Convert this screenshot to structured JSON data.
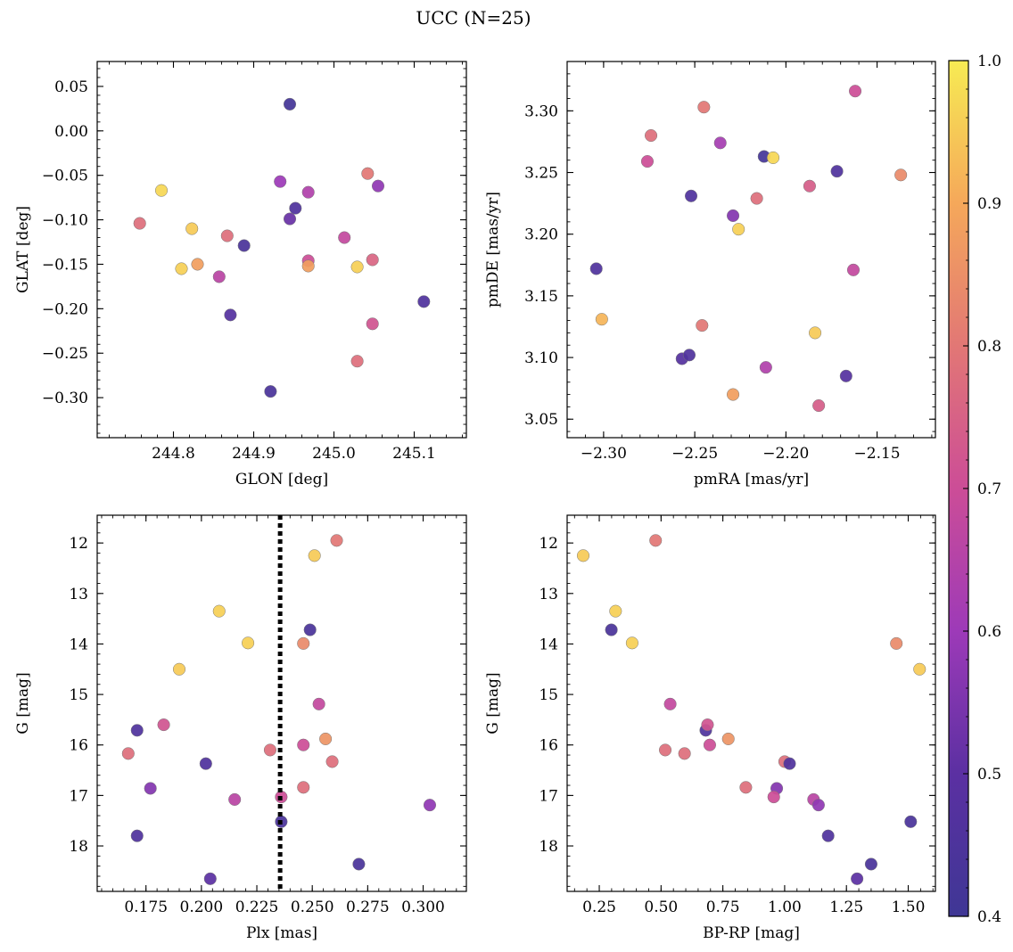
{
  "figure": {
    "title": "UCC (N=25)",
    "colorbar": {
      "min": 0.4,
      "max": 1.0,
      "ticks": [
        0.4,
        0.5,
        0.6,
        0.7,
        0.8,
        0.9,
        1.0
      ],
      "tick_labels": [
        "0.4",
        "0.5",
        "0.6",
        "0.7",
        "0.8",
        "0.9",
        "1.0"
      ],
      "colormap": [
        "#3f3795",
        "#5b30a2",
        "#9d3ab8",
        "#cc4d97",
        "#e27775",
        "#f5a85a",
        "#f7eb53"
      ]
    }
  },
  "chart_data": [
    {
      "type": "scatter",
      "xlabel": "GLON [deg]",
      "ylabel": "GLAT [deg]",
      "xlim": [
        244.705,
        245.165
      ],
      "ylim": [
        -0.345,
        0.078
      ],
      "xticks": [
        244.8,
        244.9,
        245.0,
        245.1
      ],
      "xtick_labels": [
        "244.8",
        "244.9",
        "245.0",
        "245.1"
      ],
      "yticks": [
        0.05,
        0.0,
        -0.05,
        -0.1,
        -0.15,
        -0.2,
        -0.25,
        -0.3
      ],
      "ytick_labels": [
        "0.05",
        "0.00",
        "−0.05",
        "−0.10",
        "−0.15",
        "−0.20",
        "−0.25",
        "−0.30"
      ],
      "points": [
        {
          "x": 244.945,
          "y": 0.03,
          "c": 0.42
        },
        {
          "x": 244.785,
          "y": -0.067,
          "c": 0.97
        },
        {
          "x": 244.758,
          "y": -0.104,
          "c": 0.78
        },
        {
          "x": 244.823,
          "y": -0.11,
          "c": 0.95
        },
        {
          "x": 244.81,
          "y": -0.155,
          "c": 0.96
        },
        {
          "x": 244.83,
          "y": -0.15,
          "c": 0.88
        },
        {
          "x": 244.867,
          "y": -0.118,
          "c": 0.78
        },
        {
          "x": 244.888,
          "y": -0.129,
          "c": 0.44
        },
        {
          "x": 244.857,
          "y": -0.164,
          "c": 0.66
        },
        {
          "x": 244.871,
          "y": -0.207,
          "c": 0.48
        },
        {
          "x": 244.921,
          "y": -0.293,
          "c": 0.44
        },
        {
          "x": 244.933,
          "y": -0.057,
          "c": 0.6
        },
        {
          "x": 244.952,
          "y": -0.087,
          "c": 0.46
        },
        {
          "x": 244.945,
          "y": -0.099,
          "c": 0.52
        },
        {
          "x": 244.968,
          "y": -0.069,
          "c": 0.64
        },
        {
          "x": 244.968,
          "y": -0.146,
          "c": 0.7
        },
        {
          "x": 244.968,
          "y": -0.152,
          "c": 0.88
        },
        {
          "x": 245.013,
          "y": -0.12,
          "c": 0.68
        },
        {
          "x": 245.029,
          "y": -0.153,
          "c": 0.96
        },
        {
          "x": 245.042,
          "y": -0.048,
          "c": 0.8
        },
        {
          "x": 245.055,
          "y": -0.062,
          "c": 0.58
        },
        {
          "x": 245.048,
          "y": -0.145,
          "c": 0.76
        },
        {
          "x": 245.048,
          "y": -0.217,
          "c": 0.72
        },
        {
          "x": 245.029,
          "y": -0.259,
          "c": 0.78
        },
        {
          "x": 245.112,
          "y": -0.192,
          "c": 0.46
        }
      ]
    },
    {
      "type": "scatter",
      "xlabel": "pmRA [mas/yr]",
      "ylabel": "pmDE [mas/yr]",
      "xlim": [
        -2.32,
        -2.118
      ],
      "ylim": [
        3.035,
        3.34
      ],
      "xticks": [
        -2.3,
        -2.25,
        -2.2,
        -2.15
      ],
      "xtick_labels": [
        "−2.30",
        "−2.25",
        "−2.20",
        "−2.15"
      ],
      "yticks": [
        3.3,
        3.25,
        3.2,
        3.15,
        3.1,
        3.05
      ],
      "ytick_labels": [
        "3.30",
        "3.25",
        "3.20",
        "3.15",
        "3.10",
        "3.05"
      ],
      "points": [
        {
          "x": -2.162,
          "y": 3.316,
          "c": 0.7
        },
        {
          "x": -2.245,
          "y": 3.303,
          "c": 0.8
        },
        {
          "x": -2.274,
          "y": 3.28,
          "c": 0.78
        },
        {
          "x": -2.236,
          "y": 3.274,
          "c": 0.62
        },
        {
          "x": -2.276,
          "y": 3.259,
          "c": 0.7
        },
        {
          "x": -2.212,
          "y": 3.263,
          "c": 0.42
        },
        {
          "x": -2.207,
          "y": 3.262,
          "c": 0.97
        },
        {
          "x": -2.172,
          "y": 3.251,
          "c": 0.46
        },
        {
          "x": -2.137,
          "y": 3.248,
          "c": 0.84
        },
        {
          "x": -2.187,
          "y": 3.239,
          "c": 0.74
        },
        {
          "x": -2.252,
          "y": 3.231,
          "c": 0.46
        },
        {
          "x": -2.216,
          "y": 3.229,
          "c": 0.78
        },
        {
          "x": -2.229,
          "y": 3.215,
          "c": 0.56
        },
        {
          "x": -2.226,
          "y": 3.204,
          "c": 0.96
        },
        {
          "x": -2.304,
          "y": 3.172,
          "c": 0.46
        },
        {
          "x": -2.163,
          "y": 3.171,
          "c": 0.68
        },
        {
          "x": -2.301,
          "y": 3.131,
          "c": 0.92
        },
        {
          "x": -2.246,
          "y": 3.126,
          "c": 0.8
        },
        {
          "x": -2.184,
          "y": 3.12,
          "c": 0.95
        },
        {
          "x": -2.257,
          "y": 3.099,
          "c": 0.48
        },
        {
          "x": -2.253,
          "y": 3.102,
          "c": 0.46
        },
        {
          "x": -2.211,
          "y": 3.092,
          "c": 0.64
        },
        {
          "x": -2.167,
          "y": 3.085,
          "c": 0.48
        },
        {
          "x": -2.229,
          "y": 3.07,
          "c": 0.88
        },
        {
          "x": -2.182,
          "y": 3.061,
          "c": 0.74
        }
      ]
    },
    {
      "type": "scatter",
      "xlabel": "Plx [mas]",
      "ylabel": "G [mag]",
      "xlim": [
        0.153,
        0.3195
      ],
      "ylim": [
        18.9,
        11.45
      ],
      "xticks": [
        0.175,
        0.2,
        0.225,
        0.25,
        0.275,
        0.3
      ],
      "xtick_labels": [
        "0.175",
        "0.200",
        "0.225",
        "0.250",
        "0.275",
        "0.300"
      ],
      "yticks": [
        12,
        13,
        14,
        15,
        16,
        17,
        18
      ],
      "ytick_labels": [
        "12",
        "13",
        "14",
        "15",
        "16",
        "17",
        "18"
      ],
      "vline": 0.2355,
      "points": [
        {
          "x": 0.261,
          "y": 11.95,
          "c": 0.8
        },
        {
          "x": 0.251,
          "y": 12.25,
          "c": 0.95
        },
        {
          "x": 0.208,
          "y": 13.35,
          "c": 0.96
        },
        {
          "x": 0.221,
          "y": 13.98,
          "c": 0.96
        },
        {
          "x": 0.249,
          "y": 13.72,
          "c": 0.44
        },
        {
          "x": 0.246,
          "y": 13.99,
          "c": 0.84
        },
        {
          "x": 0.19,
          "y": 14.5,
          "c": 0.95
        },
        {
          "x": 0.253,
          "y": 15.19,
          "c": 0.68
        },
        {
          "x": 0.183,
          "y": 15.6,
          "c": 0.72
        },
        {
          "x": 0.171,
          "y": 15.71,
          "c": 0.46
        },
        {
          "x": 0.167,
          "y": 16.17,
          "c": 0.78
        },
        {
          "x": 0.256,
          "y": 15.88,
          "c": 0.86
        },
        {
          "x": 0.246,
          "y": 16.0,
          "c": 0.7
        },
        {
          "x": 0.231,
          "y": 16.1,
          "c": 0.78
        },
        {
          "x": 0.259,
          "y": 16.33,
          "c": 0.78
        },
        {
          "x": 0.202,
          "y": 16.37,
          "c": 0.46
        },
        {
          "x": 0.177,
          "y": 16.86,
          "c": 0.56
        },
        {
          "x": 0.246,
          "y": 16.84,
          "c": 0.78
        },
        {
          "x": 0.215,
          "y": 17.08,
          "c": 0.66
        },
        {
          "x": 0.236,
          "y": 17.03,
          "c": 0.7
        },
        {
          "x": 0.303,
          "y": 17.19,
          "c": 0.58
        },
        {
          "x": 0.236,
          "y": 17.52,
          "c": 0.44
        },
        {
          "x": 0.171,
          "y": 17.8,
          "c": 0.46
        },
        {
          "x": 0.271,
          "y": 18.36,
          "c": 0.44
        },
        {
          "x": 0.204,
          "y": 18.65,
          "c": 0.5
        }
      ]
    },
    {
      "type": "scatter",
      "xlabel": "BP-RP [mag]",
      "ylabel": "G [mag]",
      "xlim": [
        0.12,
        1.61
      ],
      "ylim": [
        18.9,
        11.45
      ],
      "xticks": [
        0.25,
        0.5,
        0.75,
        1.0,
        1.25,
        1.5
      ],
      "xtick_labels": [
        "0.25",
        "0.50",
        "0.75",
        "1.00",
        "1.25",
        "1.50"
      ],
      "yticks": [
        12,
        13,
        14,
        15,
        16,
        17,
        18
      ],
      "ytick_labels": [
        "12",
        "13",
        "14",
        "15",
        "16",
        "17",
        "18"
      ],
      "points": [
        {
          "x": 0.185,
          "y": 12.25,
          "c": 0.95
        },
        {
          "x": 0.478,
          "y": 11.95,
          "c": 0.8
        },
        {
          "x": 0.316,
          "y": 13.35,
          "c": 0.96
        },
        {
          "x": 0.299,
          "y": 13.72,
          "c": 0.44
        },
        {
          "x": 0.383,
          "y": 13.98,
          "c": 0.96
        },
        {
          "x": 1.452,
          "y": 13.99,
          "c": 0.84
        },
        {
          "x": 1.546,
          "y": 14.5,
          "c": 0.95
        },
        {
          "x": 0.537,
          "y": 15.19,
          "c": 0.68
        },
        {
          "x": 0.681,
          "y": 15.71,
          "c": 0.46
        },
        {
          "x": 0.688,
          "y": 15.6,
          "c": 0.72
        },
        {
          "x": 0.517,
          "y": 16.1,
          "c": 0.78
        },
        {
          "x": 0.595,
          "y": 16.17,
          "c": 0.78
        },
        {
          "x": 0.697,
          "y": 16.0,
          "c": 0.7
        },
        {
          "x": 0.772,
          "y": 15.88,
          "c": 0.86
        },
        {
          "x": 1.0,
          "y": 16.33,
          "c": 0.78
        },
        {
          "x": 1.02,
          "y": 16.37,
          "c": 0.46
        },
        {
          "x": 0.843,
          "y": 16.84,
          "c": 0.78
        },
        {
          "x": 0.968,
          "y": 16.86,
          "c": 0.56
        },
        {
          "x": 0.956,
          "y": 17.03,
          "c": 0.7
        },
        {
          "x": 1.117,
          "y": 17.08,
          "c": 0.66
        },
        {
          "x": 1.137,
          "y": 17.19,
          "c": 0.58
        },
        {
          "x": 1.51,
          "y": 17.52,
          "c": 0.44
        },
        {
          "x": 1.176,
          "y": 17.8,
          "c": 0.46
        },
        {
          "x": 1.35,
          "y": 18.36,
          "c": 0.44
        },
        {
          "x": 1.293,
          "y": 18.65,
          "c": 0.5
        }
      ]
    }
  ]
}
